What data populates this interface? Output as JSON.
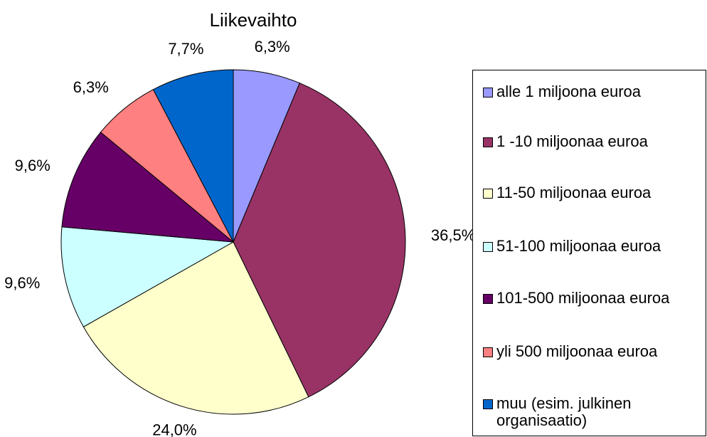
{
  "chart_data": {
    "type": "pie",
    "title": "Liikevaihto",
    "categories": [
      "alle 1 miljoona euroa",
      "1 -10 miljoonaa euroa",
      "11-50 miljoonaa euroa",
      "51-100 miljoonaa euroa",
      "101-500 miljoonaa euroa",
      "yli 500 miljoonaa euroa",
      "muu (esim. julkinen organisaatio)"
    ],
    "values": [
      6.3,
      36.5,
      24.0,
      9.6,
      9.6,
      6.3,
      7.7
    ],
    "value_labels": [
      "6,3%",
      "36,5%",
      "24,0%",
      "9,6%",
      "9,6%",
      "6,3%",
      "7,7%"
    ],
    "colors": [
      "#9999ff",
      "#993366",
      "#ffffcc",
      "#ccffff",
      "#660066",
      "#ff8080",
      "#0066cc"
    ],
    "legend": "right"
  }
}
